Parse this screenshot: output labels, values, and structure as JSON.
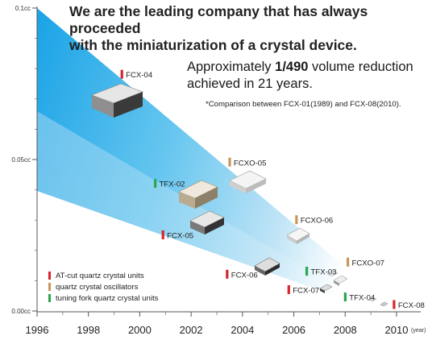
{
  "headline": {
    "line1": "We are the leading company that has always proceeded",
    "line2": "with the miniaturization of a crystal device."
  },
  "subhead": {
    "prefix": "Approximately ",
    "ratio": "1/490",
    "suffix": " volume reduction",
    "line2": "achieved in 21 years."
  },
  "note": "*Comparison between FCX-01(1989) and FCX-08(2010).",
  "legend": [
    {
      "label": "AT-cut quartz crystal units",
      "color": "#d7262d"
    },
    {
      "label": "quartz crystal oscillators",
      "color": "#c9955a"
    },
    {
      "label": "tuning fork quartz crystal units",
      "color": "#2aa650"
    }
  ],
  "chart_data": {
    "type": "scatter",
    "title": "",
    "xlabel": "(year)",
    "ylabel": "",
    "x_ticks": [
      "1996",
      "1998",
      "2000",
      "2002",
      "2004",
      "2006",
      "2008",
      "2010"
    ],
    "y_ticks": [
      "0.00cc",
      "0.05cc",
      "0.1cc"
    ],
    "xlim": [
      1996,
      2010.5
    ],
    "ylim": [
      0,
      0.1
    ],
    "colors": {
      "at_cut": "#d7262d",
      "oscillator": "#c9955a",
      "tuning_fork": "#2aa650"
    },
    "series": [
      {
        "name": "AT-cut quartz crystal units",
        "category": "at_cut",
        "points": [
          {
            "label": "FCX-04",
            "x": 1999.3,
            "y": 0.078
          },
          {
            "label": "FCX-05",
            "x": 2000.9,
            "y": 0.025
          },
          {
            "label": "FCX-06",
            "x": 2003.4,
            "y": 0.012
          },
          {
            "label": "FCX-07",
            "x": 2005.8,
            "y": 0.0069
          },
          {
            "label": "FCX-08",
            "x": 2009.9,
            "y": 0.002
          }
        ]
      },
      {
        "name": "quartz crystal oscillators",
        "category": "oscillator",
        "points": [
          {
            "label": "FCXO-05",
            "x": 2003.5,
            "y": 0.049
          },
          {
            "label": "FCXO-06",
            "x": 2006.1,
            "y": 0.03
          },
          {
            "label": "FCXO-07",
            "x": 2008.1,
            "y": 0.016
          }
        ]
      },
      {
        "name": "tuning fork quartz crystal units",
        "category": "tuning_fork",
        "points": [
          {
            "label": "TFX-02",
            "x": 2000.6,
            "y": 0.042
          },
          {
            "label": "TFX-03",
            "x": 2006.5,
            "y": 0.013
          },
          {
            "label": "TFX-04",
            "x": 2008.0,
            "y": 0.0045
          }
        ]
      }
    ]
  }
}
